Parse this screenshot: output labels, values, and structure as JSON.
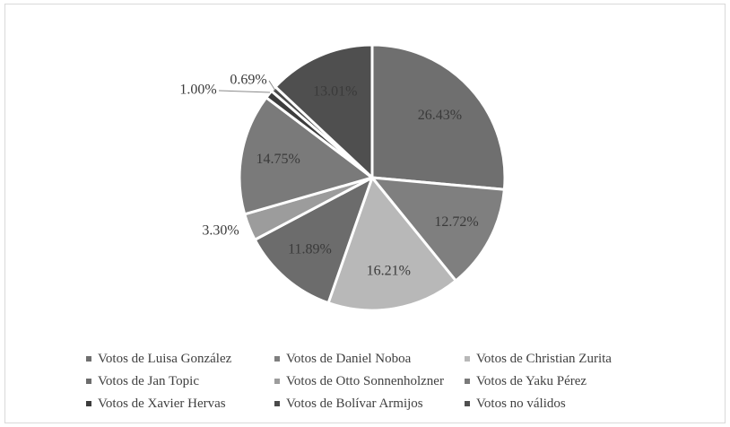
{
  "chart_data": {
    "type": "pie",
    "title": "",
    "slices": [
      {
        "name": "Votos de Luisa González",
        "value": 26.43,
        "label": "26.43%",
        "color": "#6f6f6f"
      },
      {
        "name": "Votos de Daniel Noboa",
        "value": 12.72,
        "label": "12.72%",
        "color": "#7f7f7f"
      },
      {
        "name": "Votos de Christian Zurita",
        "value": 16.21,
        "label": "16.21%",
        "color": "#b8b8b8"
      },
      {
        "name": "Votos de Jan Topic",
        "value": 11.89,
        "label": "11.89%",
        "color": "#6c6c6c"
      },
      {
        "name": "Votos de Otto Sonnenholzner",
        "value": 3.3,
        "label": "3.30%",
        "color": "#9c9c9c"
      },
      {
        "name": "Votos de Yaku Pérez",
        "value": 14.75,
        "label": "14.75%",
        "color": "#7a7a7a"
      },
      {
        "name": "Votos de Xavier Hervas",
        "value": 1.0,
        "label": "1.00%",
        "color": "#3c3c3c"
      },
      {
        "name": "Votos de Bolívar Armijos",
        "value": 0.69,
        "label": "0.69%",
        "color": "#4a4a4a"
      },
      {
        "name": "Votos no válidos",
        "value": 13.01,
        "label": "13.01%",
        "color": "#4f4f4f"
      }
    ],
    "legend_position": "bottom",
    "label_color": "#3a3a3a"
  }
}
